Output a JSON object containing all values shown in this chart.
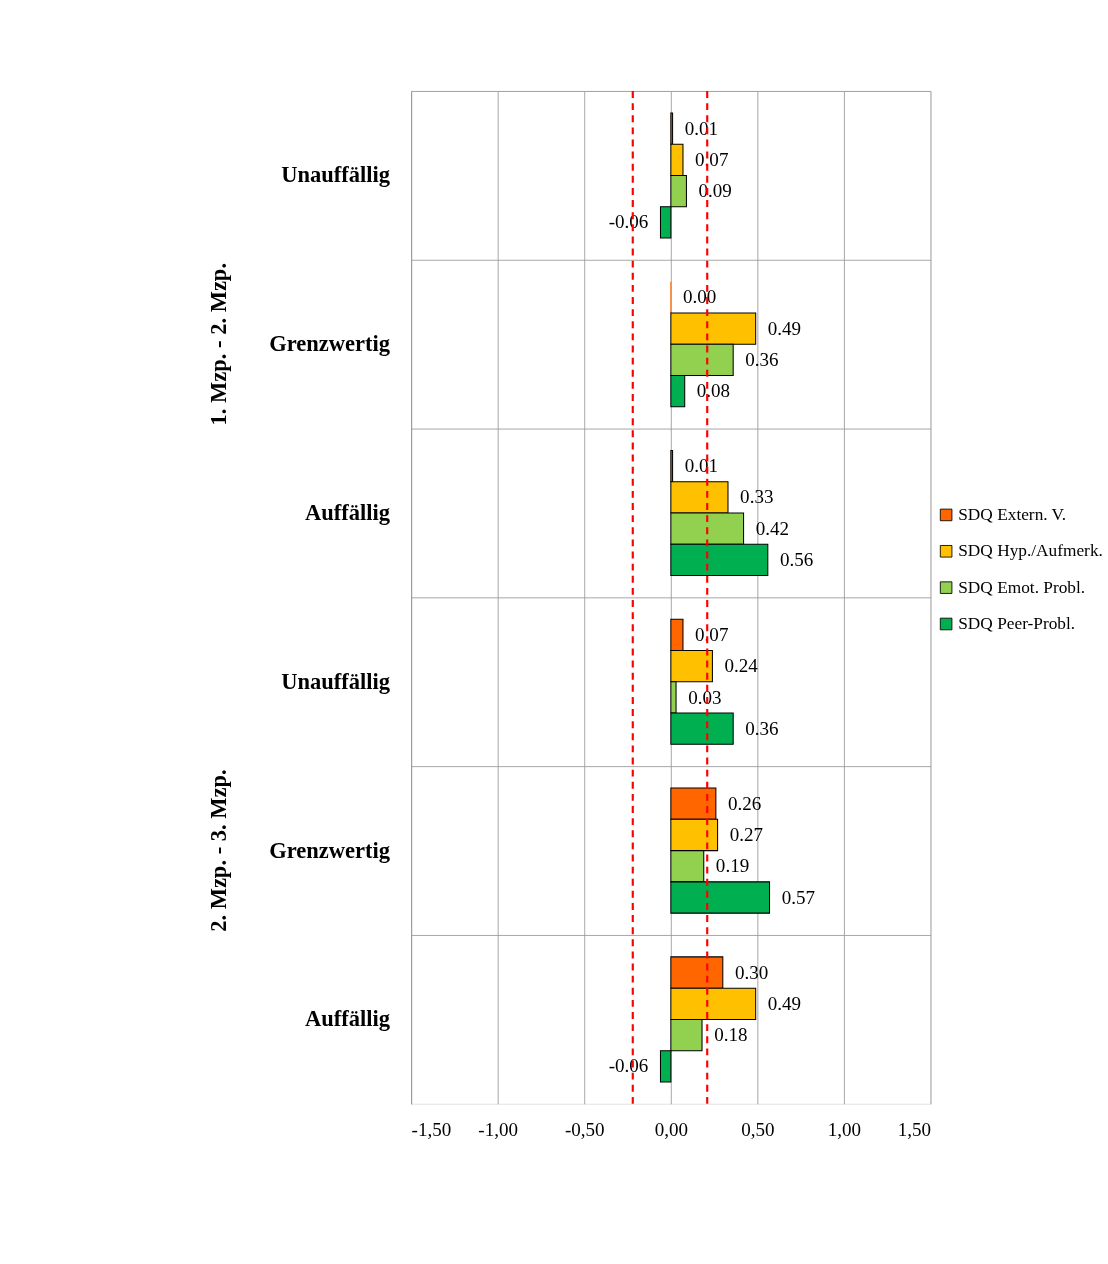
{
  "chart_data": {
    "type": "bar",
    "orientation": "horizontal",
    "categories": [
      "Unauffällig",
      "Grenzwertig",
      "Auffällig",
      "Unauffällig",
      "Grenzwertig",
      "Auffällig"
    ],
    "series": [
      {
        "name": "SDQ Extern. V.",
        "color": "#ff6600",
        "values": [
          0.01,
          0.0,
          0.01,
          0.07,
          0.26,
          0.3
        ],
        "value_labels": [
          "0.01",
          "0.00",
          "0.01",
          "0.07",
          "0.26",
          "0.30"
        ]
      },
      {
        "name": "SDQ Hyp./Aufmerk.",
        "color": "#ffc000",
        "values": [
          0.07,
          0.49,
          0.33,
          0.24,
          0.27,
          0.49
        ],
        "value_labels": [
          "0.07",
          "0.49",
          "0.33",
          "0.24",
          "0.27",
          "0.49"
        ]
      },
      {
        "name": "SDQ Emot. Probl.",
        "color": "#92d050",
        "values": [
          0.09,
          0.36,
          0.42,
          0.03,
          0.19,
          0.18
        ],
        "value_labels": [
          "0.09",
          "0.36",
          "0.42",
          "0.03",
          "0.19",
          "0.18"
        ]
      },
      {
        "name": "SDQ Peer-Probl.",
        "color": "#00b050",
        "values": [
          -0.06,
          0.08,
          0.56,
          0.36,
          0.57,
          -0.06
        ],
        "value_labels": [
          "-0.06",
          "0.08",
          "0.56",
          "0.36",
          "0.57",
          "-0.06"
        ]
      }
    ],
    "xlim": [
      -1.5,
      1.5
    ],
    "xticks": [
      {
        "value": -1.5,
        "label": "-1,50"
      },
      {
        "value": -1.0,
        "label": "-1,00"
      },
      {
        "value": -0.5,
        "label": "-0,50"
      },
      {
        "value": 0,
        "label": "0,00"
      },
      {
        "value": 0.5,
        "label": "0,50"
      },
      {
        "value": 1.0,
        "label": "1,00"
      },
      {
        "value": 1.5,
        "label": "1,50"
      }
    ],
    "ref_lines": [
      {
        "axis": "x",
        "value": -0.22,
        "color": "#ff0000",
        "line_style": "dashed"
      },
      {
        "axis": "x",
        "value": 0.21,
        "color": "#ff0000",
        "line_style": "dashed"
      }
    ],
    "annotations": [
      "1. Mzp. - 2. Mzp.",
      "2. Mzp. - 3. Mzp."
    ],
    "grid": true,
    "legend": "right"
  }
}
